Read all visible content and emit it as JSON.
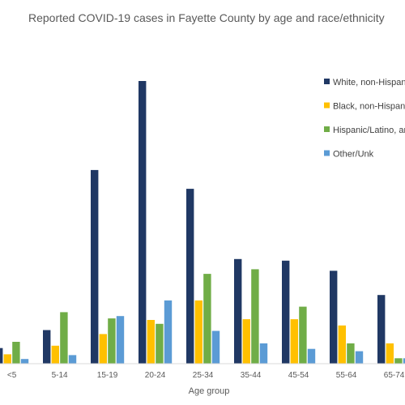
{
  "chart_data": {
    "type": "bar",
    "title": "Reported COVID-19 cases in Fayette County by age and race/ethnicity",
    "xlabel": "Age group",
    "ylabel": "",
    "categories": [
      "<5",
      "5-14",
      "15-19",
      "20-24",
      "25-34",
      "35-44",
      "45-54",
      "55-64",
      "65-74"
    ],
    "ylim": [
      0,
      360
    ],
    "grid": false,
    "legend_position": "right",
    "series": [
      {
        "name": "White, non-Hispanic",
        "color": "#203864",
        "values": [
          20,
          43,
          248,
          362,
          224,
          134,
          132,
          119,
          88
        ]
      },
      {
        "name": "Black, non-Hispanic",
        "color": "#FFC000",
        "values": [
          12,
          23,
          38,
          56,
          81,
          57,
          57,
          49,
          26
        ]
      },
      {
        "name": "Hispanic/Latino, any race",
        "color": "#70AD47",
        "values": [
          28,
          66,
          58,
          51,
          115,
          121,
          73,
          26,
          7
        ]
      },
      {
        "name": "Other/Unk",
        "color": "#5B9BD5",
        "values": [
          6,
          11,
          61,
          81,
          42,
          26,
          19,
          16,
          7
        ]
      }
    ]
  }
}
